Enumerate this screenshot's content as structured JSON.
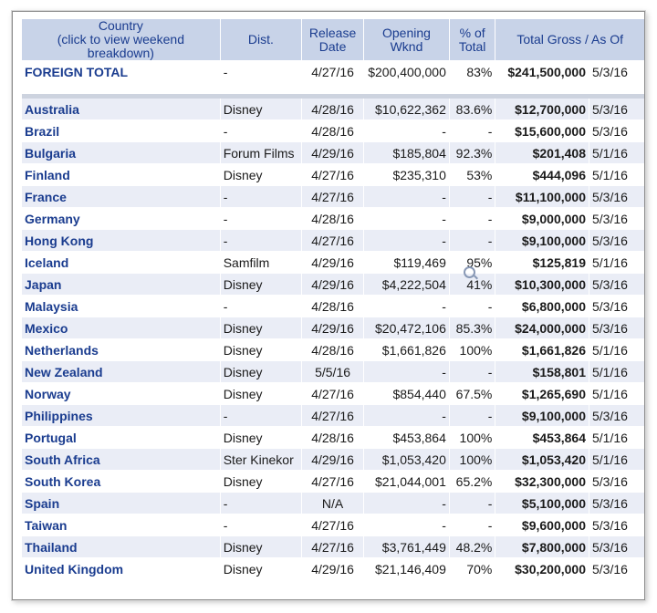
{
  "headers": {
    "country": "Country",
    "country_sub": "(click to view weekend breakdown)",
    "dist": "Dist.",
    "release_1": "Release",
    "release_2": "Date",
    "opening_1": "Opening",
    "opening_2": "Wknd",
    "pct_1": "% of",
    "pct_2": "Total",
    "gross": "Total Gross / As Of"
  },
  "total": {
    "country": "FOREIGN TOTAL",
    "dist": "-",
    "release": "4/27/16",
    "opening": "$200,400,000",
    "pct": "83%",
    "gross": "$241,500,000",
    "asof": "5/3/16"
  },
  "rows": [
    {
      "country": "Australia",
      "dist": "Disney",
      "release": "4/28/16",
      "opening": "$10,622,362",
      "pct": "83.6%",
      "gross": "$12,700,000",
      "asof": "5/3/16"
    },
    {
      "country": "Brazil",
      "dist": "-",
      "release": "4/28/16",
      "opening": "-",
      "pct": "-",
      "gross": "$15,600,000",
      "asof": "5/3/16"
    },
    {
      "country": "Bulgaria",
      "dist": "Forum Films",
      "release": "4/29/16",
      "opening": "$185,804",
      "pct": "92.3%",
      "gross": "$201,408",
      "asof": "5/1/16"
    },
    {
      "country": "Finland",
      "dist": "Disney",
      "release": "4/27/16",
      "opening": "$235,310",
      "pct": "53%",
      "gross": "$444,096",
      "asof": "5/1/16"
    },
    {
      "country": "France",
      "dist": "-",
      "release": "4/27/16",
      "opening": "-",
      "pct": "-",
      "gross": "$11,100,000",
      "asof": "5/3/16"
    },
    {
      "country": "Germany",
      "dist": "-",
      "release": "4/28/16",
      "opening": "-",
      "pct": "-",
      "gross": "$9,000,000",
      "asof": "5/3/16"
    },
    {
      "country": "Hong Kong",
      "dist": "-",
      "release": "4/27/16",
      "opening": "-",
      "pct": "-",
      "gross": "$9,100,000",
      "asof": "5/3/16"
    },
    {
      "country": "Iceland",
      "dist": "Samfilm",
      "release": "4/29/16",
      "opening": "$119,469",
      "pct": "95%",
      "gross": "$125,819",
      "asof": "5/1/16"
    },
    {
      "country": "Japan",
      "dist": "Disney",
      "release": "4/29/16",
      "opening": "$4,222,504",
      "pct": "41%",
      "gross": "$10,300,000",
      "asof": "5/3/16"
    },
    {
      "country": "Malaysia",
      "dist": "-",
      "release": "4/28/16",
      "opening": "-",
      "pct": "-",
      "gross": "$6,800,000",
      "asof": "5/3/16"
    },
    {
      "country": "Mexico",
      "dist": "Disney",
      "release": "4/29/16",
      "opening": "$20,472,106",
      "pct": "85.3%",
      "gross": "$24,000,000",
      "asof": "5/3/16"
    },
    {
      "country": "Netherlands",
      "dist": "Disney",
      "release": "4/28/16",
      "opening": "$1,661,826",
      "pct": "100%",
      "gross": "$1,661,826",
      "asof": "5/1/16"
    },
    {
      "country": "New Zealand",
      "dist": "Disney",
      "release": "5/5/16",
      "opening": "-",
      "pct": "-",
      "gross": "$158,801",
      "asof": "5/1/16"
    },
    {
      "country": "Norway",
      "dist": "Disney",
      "release": "4/27/16",
      "opening": "$854,440",
      "pct": "67.5%",
      "gross": "$1,265,690",
      "asof": "5/1/16"
    },
    {
      "country": "Philippines",
      "dist": "-",
      "release": "4/27/16",
      "opening": "-",
      "pct": "-",
      "gross": "$9,100,000",
      "asof": "5/3/16"
    },
    {
      "country": "Portugal",
      "dist": "Disney",
      "release": "4/28/16",
      "opening": "$453,864",
      "pct": "100%",
      "gross": "$453,864",
      "asof": "5/1/16"
    },
    {
      "country": "South Africa",
      "dist": "Ster Kinekor",
      "release": "4/29/16",
      "opening": "$1,053,420",
      "pct": "100%",
      "gross": "$1,053,420",
      "asof": "5/1/16"
    },
    {
      "country": "South Korea",
      "dist": "Disney",
      "release": "4/27/16",
      "opening": "$21,044,001",
      "pct": "65.2%",
      "gross": "$32,300,000",
      "asof": "5/3/16"
    },
    {
      "country": "Spain",
      "dist": "-",
      "release": "N/A",
      "opening": "-",
      "pct": "-",
      "gross": "$5,100,000",
      "asof": "5/3/16"
    },
    {
      "country": "Taiwan",
      "dist": "-",
      "release": "4/27/16",
      "opening": "-",
      "pct": "-",
      "gross": "$9,600,000",
      "asof": "5/3/16"
    },
    {
      "country": "Thailand",
      "dist": "Disney",
      "release": "4/27/16",
      "opening": "$3,761,449",
      "pct": "48.2%",
      "gross": "$7,800,000",
      "asof": "5/3/16"
    },
    {
      "country": "United Kingdom",
      "dist": "Disney",
      "release": "4/29/16",
      "opening": "$21,146,409",
      "pct": "70%",
      "gross": "$30,200,000",
      "asof": "5/3/16"
    }
  ]
}
